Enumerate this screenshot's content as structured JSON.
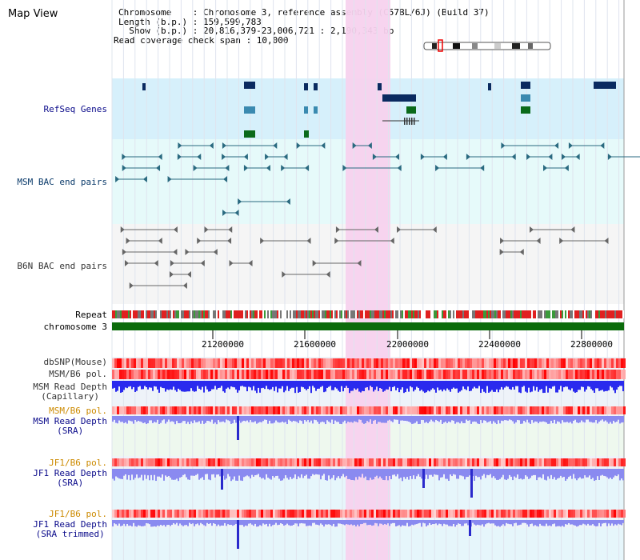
{
  "title": "Map View",
  "info": {
    "chromosome_line": "Chromosome    : Chromosome 3, reference assembly (C57BL/6J) (Build 37)",
    "length_line": "Length (b.p.) : 159,599,783",
    "show_line": "  Show (b.p.) : 20,816,379-23,006,721 : 2,190,343 bp",
    "span_line": "Read coverage check span : 10,000"
  },
  "tracks": {
    "refseq": "RefSeq Genes",
    "msm_bac": "MSM BAC end pairs",
    "b6n_bac": "B6N BAC end pairs",
    "repeat": "Repeat",
    "chromosome": "chromosome 3",
    "dbsnp": "dbSNP(Mouse)",
    "msm_pol": "MSM/B6 pol.",
    "msm_depth_cap_1": "MSM Read Depth",
    "msm_depth_cap_2": "(Capillary)",
    "msm_pol_2": "MSM/B6 pol.",
    "msm_depth_sra_1": "MSM Read Depth",
    "msm_depth_sra_2": "(SRA)",
    "jf1_pol": "JF1/B6 pol.",
    "jf1_depth_1": "JF1 Read Depth",
    "jf1_depth_2": "(SRA)",
    "jf1_pol_2": "JF1/B6 pol.",
    "jf1_trim_1": "JF1 Read Depth",
    "jf1_trim_2": "(SRA trimmed)"
  },
  "axis_ticks": [
    "21200000",
    "21600000",
    "22000000",
    "22400000",
    "22800000"
  ],
  "colors": {
    "highlight": "#f7d2ee",
    "refseq_bg": "#d6f0fb",
    "bac_bg": "#e6fafa",
    "gene_navy": "#0a2a60",
    "gene_teal": "#3a8ab0",
    "gene_green": "#0a6a1a",
    "chromosome_green": "#0b6b0b",
    "repeat_red": "#e02020",
    "depth_blue": "#2a2aee",
    "depth_light": "#8a8af0"
  }
}
